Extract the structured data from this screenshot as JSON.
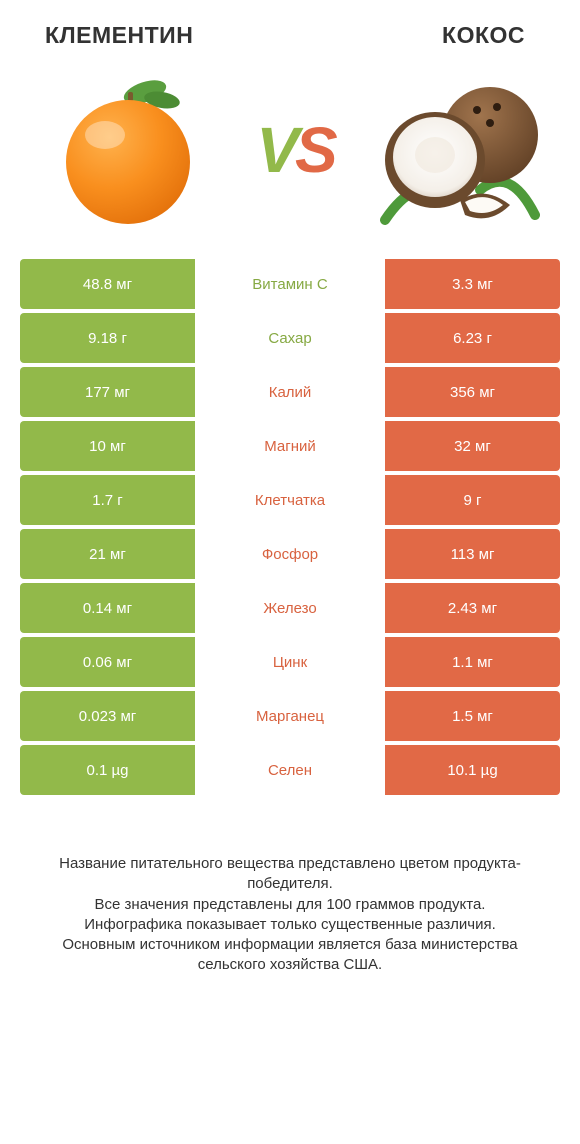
{
  "colors": {
    "green": "#92b94a",
    "orange": "#e16946",
    "green_text": "#86a943",
    "orange_text": "#d8623f",
    "footer_text": "#333333"
  },
  "header": {
    "left_title": "КЛЕМЕНТИН",
    "right_title": "КОКОС"
  },
  "vs": {
    "v": "V",
    "s": "S"
  },
  "rows": [
    {
      "label": "Витамин C",
      "left": "48.8 мг",
      "right": "3.3 мг",
      "winner": "left"
    },
    {
      "label": "Сахар",
      "left": "9.18 г",
      "right": "6.23 г",
      "winner": "left"
    },
    {
      "label": "Калий",
      "left": "177 мг",
      "right": "356 мг",
      "winner": "right"
    },
    {
      "label": "Магний",
      "left": "10 мг",
      "right": "32 мг",
      "winner": "right"
    },
    {
      "label": "Клетчатка",
      "left": "1.7 г",
      "right": "9 г",
      "winner": "right"
    },
    {
      "label": "Фосфор",
      "left": "21 мг",
      "right": "113 мг",
      "winner": "right"
    },
    {
      "label": "Железо",
      "left": "0.14 мг",
      "right": "2.43 мг",
      "winner": "right"
    },
    {
      "label": "Цинк",
      "left": "0.06 мг",
      "right": "1.1 мг",
      "winner": "right"
    },
    {
      "label": "Марганец",
      "left": "0.023 мг",
      "right": "1.5 мг",
      "winner": "right"
    },
    {
      "label": "Селен",
      "left": "0.1 µg",
      "right": "10.1 µg",
      "winner": "right"
    }
  ],
  "footer": {
    "line1": "Название питательного вещества представлено цветом продукта-победителя.",
    "line2": "Все значения представлены для 100 граммов продукта.",
    "line3": "Инфографика показывает только существенные различия.",
    "line4": "Основным источником информации является база министерства сельского хозяйства США."
  }
}
